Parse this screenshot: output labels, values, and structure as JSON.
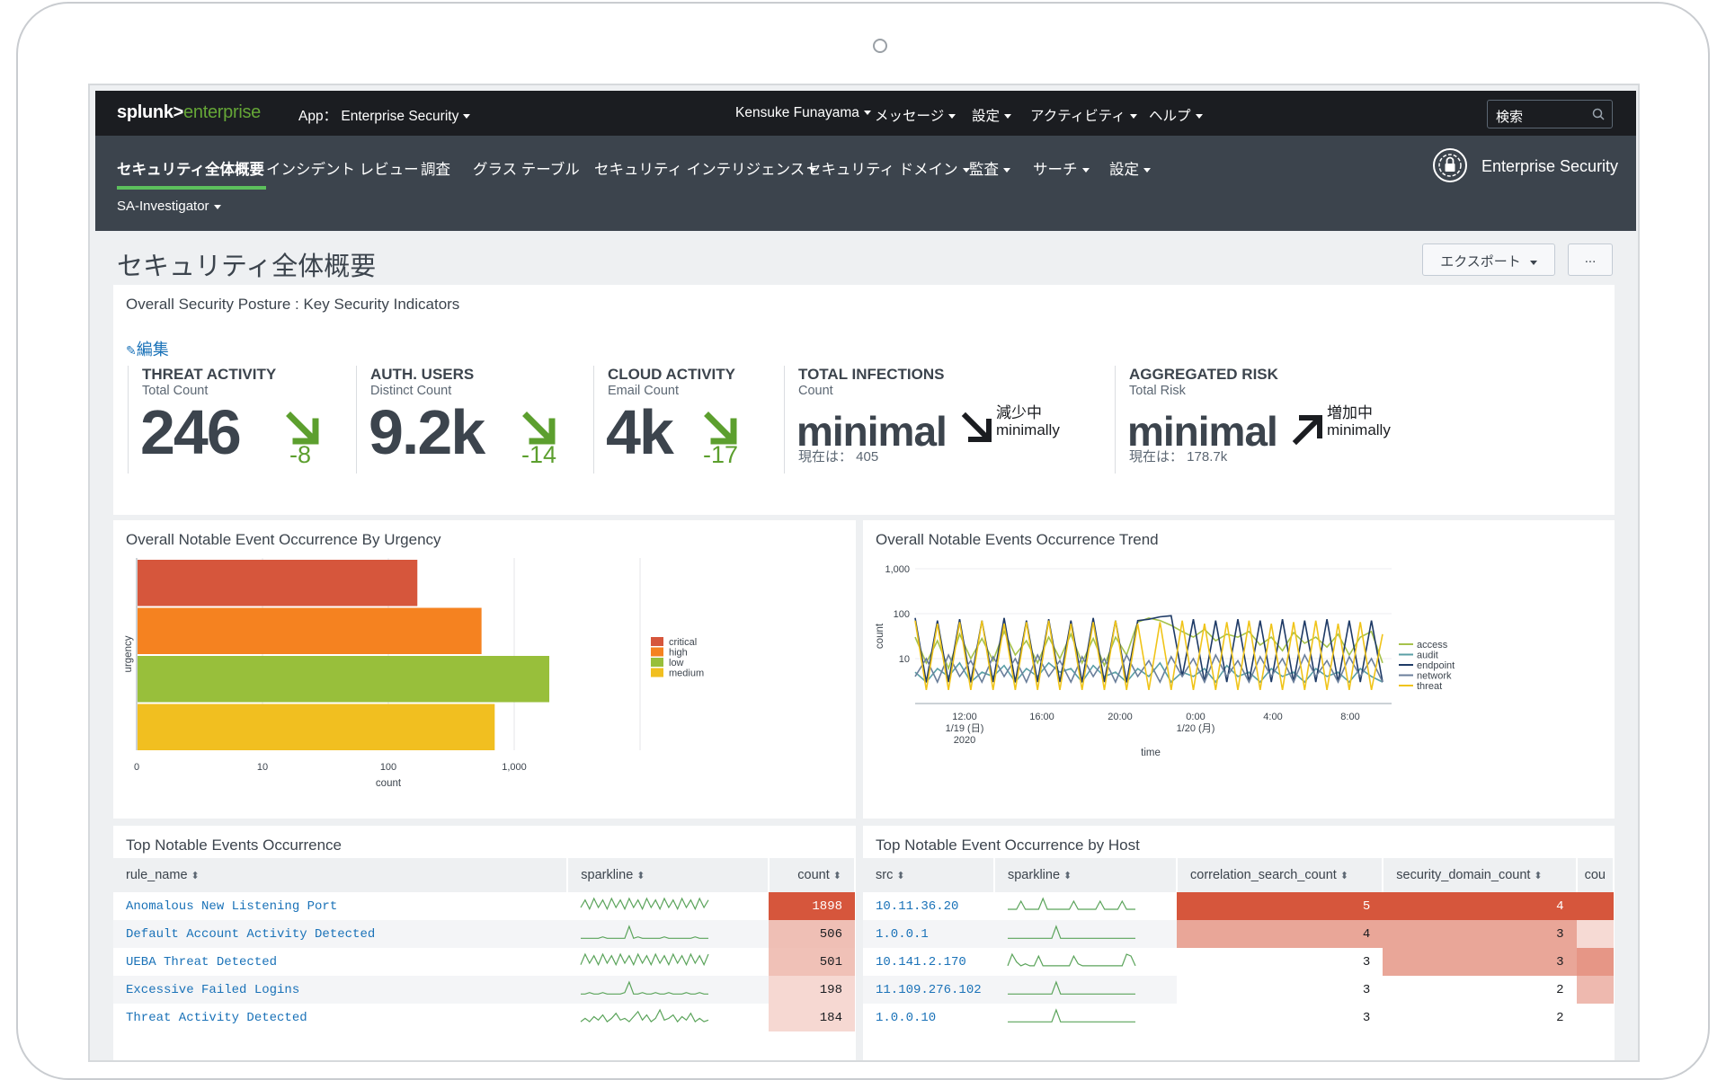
{
  "topbar": {
    "logo_splunk": "splunk>",
    "logo_enterprise": "enterprise",
    "app_menu": "App： Enterprise Security",
    "user": "Kensuke Funayama",
    "messages": "メッセージ",
    "settings": "設定",
    "activity": "アクティビティ",
    "help": "ヘルプ",
    "search_placeholder": "検索"
  },
  "appbar": {
    "tabs": [
      {
        "label": "セキュリティ全体概要",
        "active": true
      },
      {
        "label": "インシデント レビュー"
      },
      {
        "label": "調査"
      },
      {
        "label": "グラス テーブル"
      },
      {
        "label": "セキュリティ インテリジェンス"
      },
      {
        "label": "セキュリティ ドメイン"
      },
      {
        "label": "監査"
      },
      {
        "label": "サーチ"
      },
      {
        "label": "設定"
      }
    ],
    "sa_menu": "SA-Investigator",
    "brand": "Enterprise Security",
    "accent": "#5cc05c"
  },
  "page": {
    "title": "セキュリティ全体概要",
    "export_label": "エクスポート",
    "more_label": "..."
  },
  "kpi_panel": {
    "title": "Overall Security Posture : Key Security Indicators",
    "edit_label": "編集",
    "items": [
      {
        "title": "THREAT ACTIVITY",
        "sub": "Total Count",
        "value": "246",
        "delta": "-8",
        "direction": "down"
      },
      {
        "title": "AUTH. USERS",
        "sub": "Distinct Count",
        "value": "9.2k",
        "delta": "-14",
        "direction": "down"
      },
      {
        "title": "CLOUD ACTIVITY",
        "sub": "Email Count",
        "value": "4k",
        "delta": "-17",
        "direction": "down"
      },
      {
        "title": "TOTAL INFECTIONS",
        "sub": "Count",
        "value": "minimal",
        "trend_jp": "減少中",
        "trend_en": "minimally",
        "current": "現在は： 405",
        "direction": "down"
      },
      {
        "title": "AGGREGATED RISK",
        "sub": "Total Risk",
        "value": "minimal",
        "trend_jp": "増加中",
        "trend_en": "minimally",
        "current": "現在は： 178.7k",
        "direction": "up"
      }
    ]
  },
  "urgency_panel": {
    "title": "Overall Notable Event Occurrence By Urgency"
  },
  "trend_panel": {
    "title": "Overall Notable Events Occurrence Trend"
  },
  "chart_data": [
    {
      "type": "bar",
      "orientation": "horizontal",
      "title": "Overall Notable Event Occurrence By Urgency",
      "xlabel": "count",
      "ylabel": "urgency",
      "x_scale": "log",
      "xlim": [
        1,
        10000
      ],
      "x_ticks": [
        "0",
        "10",
        "100",
        "1,000"
      ],
      "categories": [
        "critical",
        "high",
        "low",
        "medium"
      ],
      "values": [
        170,
        550,
        1900,
        700
      ],
      "colors": [
        "#d6563c",
        "#f58220",
        "#98bf3b",
        "#f1bf20"
      ],
      "legend": "right",
      "grid": true
    },
    {
      "type": "line",
      "title": "Overall Notable Events Occurrence Trend",
      "xlabel": "time",
      "ylabel": "count",
      "y_scale": "log",
      "y_ticks": [
        "10",
        "100",
        "1,000"
      ],
      "x_ticks": [
        "12:00\n1/19 (日)\n2020",
        "16:00",
        "20:00",
        "0:00\n1/20 (月)",
        "4:00",
        "8:00"
      ],
      "legend": "right",
      "series": [
        {
          "name": "access",
          "color": "#a6c24b",
          "values": [
            30,
            8,
            25,
            6,
            35,
            10,
            28,
            9,
            40,
            12,
            25,
            8,
            30,
            10,
            35,
            8,
            28,
            7,
            30,
            12,
            65,
            80,
            70,
            55,
            40,
            30,
            45,
            25,
            35,
            30,
            40,
            20,
            30,
            15,
            38,
            22,
            30,
            18,
            35,
            12,
            30,
            40,
            8
          ]
        },
        {
          "name": "audit",
          "color": "#5a9fa6",
          "values": [
            5,
            3,
            6,
            4,
            8,
            3,
            5,
            4,
            7,
            3,
            6,
            4,
            8,
            5,
            6,
            3,
            7,
            4,
            5,
            3,
            6,
            4,
            8,
            3,
            5,
            4,
            6,
            3,
            7,
            4,
            5,
            3,
            6,
            4,
            5,
            3,
            6,
            4,
            5,
            3,
            6,
            4,
            3
          ]
        },
        {
          "name": "endpoint",
          "color": "#1e3a66",
          "values": [
            80,
            3,
            70,
            3,
            75,
            3,
            70,
            3,
            80,
            3,
            70,
            3,
            75,
            3,
            70,
            3,
            80,
            3,
            70,
            3,
            70,
            75,
            85,
            90,
            4,
            75,
            3,
            70,
            3,
            75,
            3,
            70,
            3,
            75,
            3,
            70,
            3,
            75,
            3,
            70,
            3,
            70,
            3
          ]
        },
        {
          "name": "network",
          "color": "#6b7f9b",
          "values": [
            4,
            10,
            3,
            12,
            4,
            9,
            3,
            11,
            4,
            10,
            3,
            12,
            4,
            9,
            3,
            11,
            4,
            10,
            3,
            12,
            4,
            9,
            3,
            11,
            4,
            10,
            3,
            12,
            4,
            9,
            3,
            11,
            4,
            10,
            3,
            12,
            4,
            9,
            3,
            11,
            4,
            10,
            3
          ]
        },
        {
          "name": "threat",
          "color": "#f0c419",
          "values": [
            70,
            2,
            60,
            2,
            65,
            2,
            70,
            2,
            60,
            2,
            65,
            2,
            70,
            2,
            60,
            2,
            65,
            2,
            70,
            2,
            60,
            2,
            65,
            2,
            70,
            2,
            60,
            2,
            65,
            2,
            70,
            2,
            60,
            2,
            65,
            2,
            70,
            2,
            60,
            2,
            65,
            2,
            35
          ]
        }
      ]
    }
  ],
  "top_events": {
    "title": "Top Notable Events Occurrence",
    "columns": [
      "rule_name",
      "sparkline",
      "count"
    ],
    "rows": [
      {
        "rule_name": "Anomalous New Listening Port",
        "count": "1898",
        "heat": 1.0,
        "spark": [
          3,
          8,
          2,
          9,
          3,
          8,
          2,
          9,
          3,
          8,
          2,
          9,
          3,
          8,
          2,
          9,
          3,
          8,
          2,
          9,
          3,
          8,
          2,
          9,
          3,
          8,
          2,
          9,
          3,
          8
        ]
      },
      {
        "rule_name": "Default Account Activity Detected",
        "count": "506",
        "heat": 0.27,
        "spark": [
          1,
          1,
          1,
          1,
          1,
          2,
          1,
          1,
          1,
          1,
          1,
          9,
          1,
          2,
          1,
          1,
          1,
          1,
          1,
          2,
          1,
          1,
          1,
          1,
          1,
          1,
          2,
          1,
          1,
          1
        ]
      },
      {
        "rule_name": "UEBA Threat Detected",
        "count": "501",
        "heat": 0.26,
        "spark": [
          2,
          9,
          3,
          8,
          2,
          9,
          3,
          8,
          2,
          9,
          3,
          8,
          2,
          9,
          3,
          8,
          2,
          9,
          3,
          8,
          2,
          9,
          3,
          8,
          2,
          9,
          3,
          8,
          2,
          9
        ]
      },
      {
        "rule_name": "Excessive Failed Logins",
        "count": "198",
        "heat": 0.1,
        "spark": [
          1,
          1,
          2,
          1,
          1,
          2,
          1,
          1,
          1,
          1,
          2,
          9,
          1,
          1,
          2,
          1,
          1,
          2,
          1,
          1,
          2,
          1,
          1,
          1,
          2,
          1,
          1,
          2,
          1,
          1
        ]
      },
      {
        "rule_name": "Threat Activity Detected",
        "count": "184",
        "heat": 0.09,
        "spark": [
          1,
          3,
          1,
          4,
          2,
          5,
          1,
          3,
          6,
          2,
          3,
          1,
          4,
          7,
          2,
          5,
          1,
          3,
          8,
          2,
          3,
          5,
          1,
          4,
          2,
          6,
          1,
          3,
          1,
          2
        ]
      }
    ]
  },
  "top_hosts": {
    "title": "Top Notable Event Occurrence by Host",
    "columns": [
      "src",
      "sparkline",
      "correlation_search_count",
      "security_domain_count",
      "cou"
    ],
    "rows": [
      {
        "src": "10.11.36.20",
        "corr": "5",
        "dom": "4",
        "corr_heat": 1.0,
        "dom_heat": 1.0,
        "extra_heat": 1.0,
        "spark": [
          1,
          1,
          1,
          4,
          1,
          1,
          1,
          1,
          5,
          1,
          1,
          1,
          1,
          1,
          1,
          4,
          1,
          1,
          1,
          1,
          1,
          4,
          1,
          1,
          1,
          1,
          4,
          1,
          1,
          1
        ]
      },
      {
        "src": "1.0.0.1",
        "corr": "4",
        "dom": "3",
        "corr_heat": 0.45,
        "dom_heat": 0.45,
        "extra_heat": 0.08,
        "spark": [
          1,
          1,
          1,
          1,
          1,
          1,
          1,
          1,
          1,
          1,
          1,
          9,
          1,
          1,
          1,
          1,
          1,
          1,
          1,
          1,
          1,
          1,
          1,
          1,
          1,
          1,
          1,
          1,
          1,
          1
        ]
      },
      {
        "src": "10.141.2.170",
        "corr": "3",
        "dom": "3",
        "corr_heat": 0,
        "dom_heat": 0.45,
        "extra_heat": 0.55,
        "spark": [
          1,
          7,
          3,
          1,
          2,
          1,
          1,
          6,
          1,
          1,
          1,
          1,
          1,
          1,
          1,
          6,
          2,
          1,
          1,
          1,
          1,
          1,
          1,
          1,
          1,
          1,
          1,
          7,
          6,
          1
        ]
      },
      {
        "src": "11.109.276.102",
        "corr": "3",
        "dom": "2",
        "corr_heat": 0,
        "dom_heat": 0,
        "extra_heat": 0.3,
        "spark": [
          1,
          1,
          1,
          1,
          1,
          1,
          1,
          1,
          1,
          1,
          1,
          9,
          1,
          1,
          1,
          1,
          1,
          1,
          1,
          1,
          1,
          1,
          1,
          1,
          1,
          1,
          1,
          1,
          1,
          1
        ]
      },
      {
        "src": "1.0.0.10",
        "corr": "3",
        "dom": "2",
        "corr_heat": 0,
        "dom_heat": 0,
        "extra_heat": 0,
        "spark": [
          1,
          1,
          1,
          1,
          1,
          1,
          1,
          1,
          1,
          1,
          1,
          9,
          1,
          1,
          1,
          1,
          1,
          1,
          1,
          1,
          1,
          1,
          1,
          1,
          1,
          1,
          1,
          1,
          1,
          1
        ]
      }
    ]
  }
}
